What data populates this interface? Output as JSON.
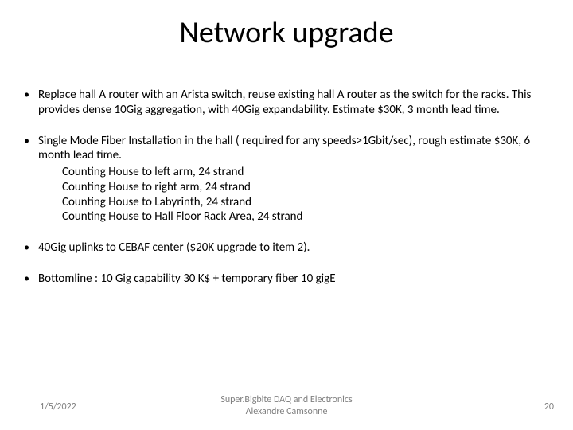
{
  "title": "Network upgrade",
  "bullets": {
    "b1": "Replace hall A router with an Arista switch, reuse existing hall A router as the switch for the racks. This provides dense 10Gig aggregation, with 40Gig expandability. Estimate $30K, 3 month lead time.",
    "b2": "Single Mode Fiber Installation in the hall ( required for any speeds>1Gbit/sec), rough estimate $30K, 6 month lead time.",
    "b2_sub": {
      "s1": "Counting House to left arm, 24 strand",
      "s2": "Counting House to right arm, 24 strand",
      "s3": "Counting House to Labyrinth, 24 strand",
      "s4": "Counting House to Hall Floor Rack Area, 24 strand"
    },
    "b3": "40Gig uplinks to CEBAF center ($20K upgrade to item 2).",
    "b4": "Bottomline : 10 Gig capability 30 K$ + temporary fiber 10 gigE"
  },
  "footer": {
    "date": "1/5/2022",
    "center_line1": "Super.Bigbite DAQ and Electronics",
    "center_line2": "Alexandre Camsonne",
    "page": "20"
  },
  "style": {
    "background_color": "#ffffff",
    "title_color": "#000000",
    "text_color": "#000000",
    "footer_color": "#808080",
    "title_fontsize": 38,
    "body_fontsize": 15,
    "footer_fontsize": 12
  }
}
